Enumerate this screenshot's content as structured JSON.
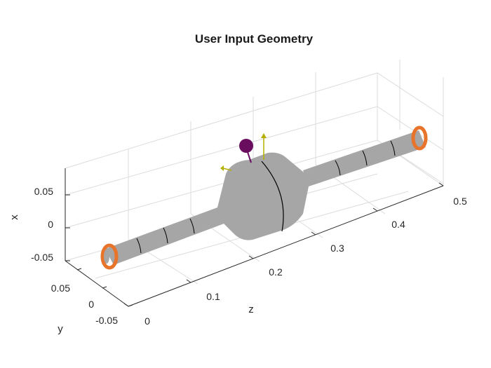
{
  "figure": {
    "title": "User Input Geometry",
    "axes": {
      "x": {
        "label": "x",
        "ticks": [
          "0.05",
          "0",
          "-0.05"
        ]
      },
      "y": {
        "label": "y",
        "ticks": [
          "0.05",
          "0",
          "-0.05"
        ]
      },
      "z": {
        "label": "z",
        "ticks": [
          "0",
          "0.1",
          "0.2",
          "0.3",
          "0.4",
          "0.5"
        ]
      }
    },
    "colors": {
      "shaft": "#a6a6a6",
      "section_line": "#000000",
      "bearing": "#e8732a",
      "disk_marker": "#6a0d5e",
      "arrow": "#b5b000",
      "grid": "#dcdcdc"
    },
    "icons": {
      "bearing_left": "bearing-ring-icon",
      "bearing_right": "bearing-ring-icon",
      "point_mass": "disk-marker-icon",
      "direction_arrows": "arrow-icon"
    }
  }
}
